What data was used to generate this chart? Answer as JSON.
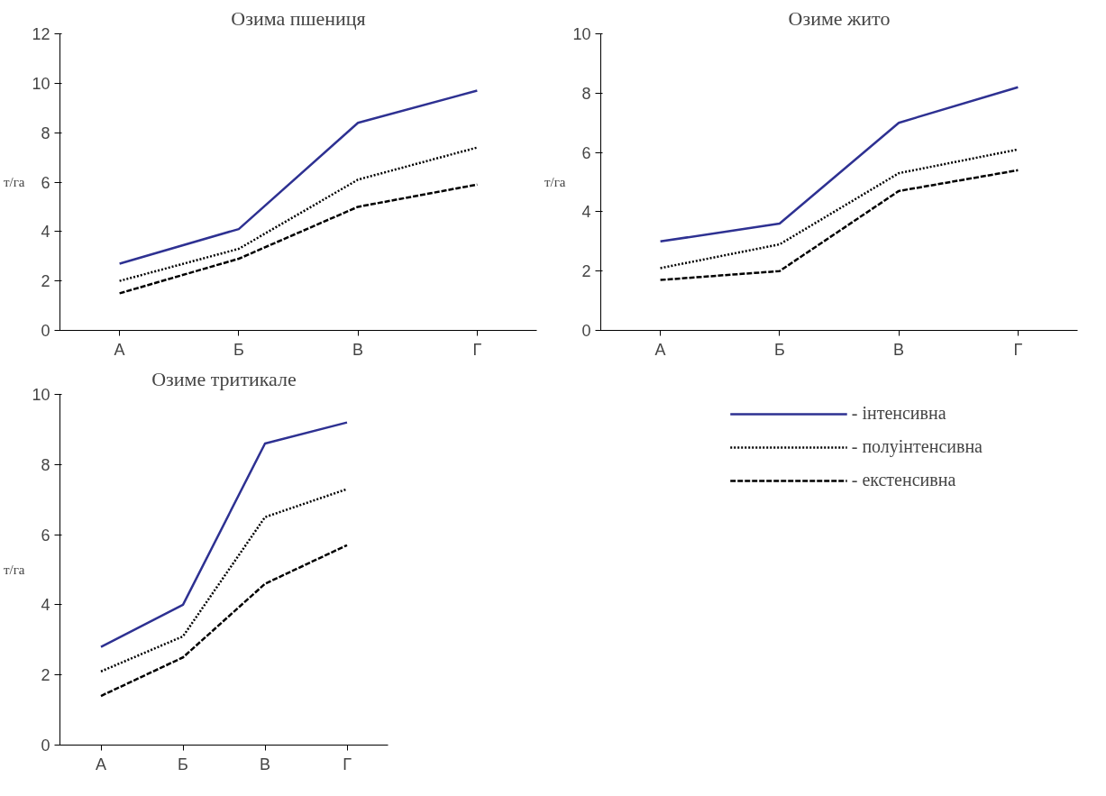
{
  "chart_data": [
    {
      "type": "line",
      "title": "Озима пшениця",
      "ylabel": "т/га",
      "categories": [
        "А",
        "Б",
        "В",
        "Г"
      ],
      "ylim": [
        0,
        12
      ],
      "yticks": [
        0,
        2,
        4,
        6,
        8,
        10,
        12
      ],
      "grid": false,
      "legend": false,
      "series": [
        {
          "color": "#2e3192",
          "line_style": "solid",
          "values": [
            2.7,
            4.1,
            8.4,
            9.7
          ]
        },
        {
          "color": "#000000",
          "line_style": "dotted",
          "values": [
            2.0,
            3.3,
            6.1,
            7.4
          ]
        },
        {
          "color": "#000000",
          "line_style": "dashed",
          "values": [
            1.5,
            2.9,
            5.0,
            5.9
          ]
        }
      ]
    },
    {
      "type": "line",
      "title": "Озиме жито",
      "ylabel": "т/га",
      "categories": [
        "А",
        "Б",
        "В",
        "Г"
      ],
      "ylim": [
        0,
        10
      ],
      "yticks": [
        0,
        2,
        4,
        6,
        8,
        10
      ],
      "grid": false,
      "legend": false,
      "series": [
        {
          "color": "#2e3192",
          "line_style": "solid",
          "values": [
            3.0,
            3.6,
            7.0,
            8.2
          ]
        },
        {
          "color": "#000000",
          "line_style": "dotted",
          "values": [
            2.1,
            2.9,
            5.3,
            6.1
          ]
        },
        {
          "color": "#000000",
          "line_style": "dashed",
          "values": [
            1.7,
            2.0,
            4.7,
            5.4
          ]
        }
      ]
    },
    {
      "type": "line",
      "title": "Озиме тритикале",
      "ylabel": "т/га",
      "categories": [
        "А",
        "Б",
        "В",
        "Г"
      ],
      "ylim": [
        0,
        10
      ],
      "yticks": [
        0,
        2,
        4,
        6,
        8,
        10
      ],
      "grid": false,
      "legend": "right",
      "series": [
        {
          "name": "- інтенсивна",
          "color": "#2e3192",
          "line_style": "solid",
          "values": [
            2.8,
            4.0,
            8.6,
            9.2
          ]
        },
        {
          "name": "- полуінтенсивна",
          "color": "#000000",
          "line_style": "dotted",
          "values": [
            2.1,
            3.1,
            6.5,
            7.3
          ]
        },
        {
          "name": "- екстенсивна",
          "color": "#000000",
          "line_style": "dashed",
          "values": [
            1.4,
            2.5,
            4.6,
            5.7
          ]
        }
      ]
    }
  ]
}
